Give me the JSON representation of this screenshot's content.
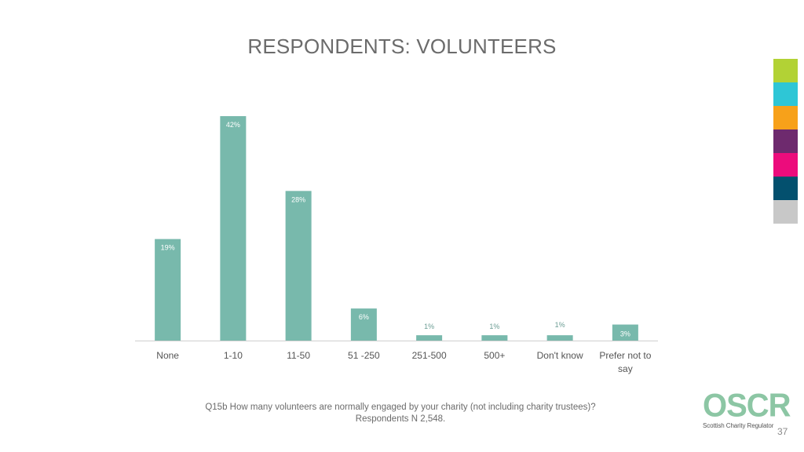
{
  "title": "RESPONDENTS: VOLUNTEERS",
  "chart_data": {
    "type": "bar",
    "categories": [
      "None",
      "1-10",
      "11-50",
      "51 -250",
      "251-500",
      "500+",
      "Don't know",
      "Prefer not to say"
    ],
    "values": [
      19,
      42,
      28,
      6,
      1,
      1,
      1,
      3
    ],
    "data_labels": [
      "19%",
      "42%",
      "28%",
      "6%",
      "1%",
      "1%",
      "1%",
      "3%"
    ],
    "ylim": [
      0,
      45
    ],
    "grid": false,
    "legend": "none",
    "bar_color": "#78b9ac"
  },
  "swatch_colors": [
    "#b2d235",
    "#2ec6d6",
    "#f7a11a",
    "#6e2a6e",
    "#ec0c7c",
    "#03506e",
    "#c8c8c8"
  ],
  "footer": {
    "question": "Q15b How many volunteers are normally engaged by your charity (not including charity trustees)?",
    "respondents": "Respondents N 2,548."
  },
  "logo": {
    "text": "OSCR",
    "subtitle": "Scottish Charity Regulator",
    "color": "#8cc6a4"
  },
  "page_number": "37"
}
